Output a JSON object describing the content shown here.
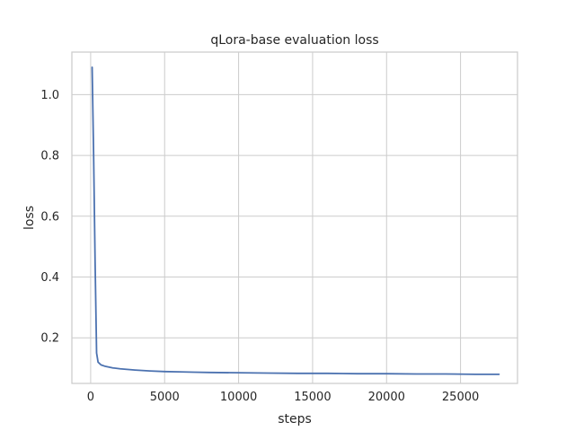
{
  "chart_data": {
    "type": "line",
    "title": "qLora-base evaluation loss",
    "xlabel": "steps",
    "ylabel": "loss",
    "xlim": [
      -1270,
      28850
    ],
    "ylim": [
      0.05,
      1.14
    ],
    "xticks": [
      0,
      5000,
      10000,
      15000,
      20000,
      25000
    ],
    "xtick_labels": [
      "0",
      "5000",
      "10000",
      "15000",
      "20000",
      "25000"
    ],
    "yticks": [
      0.2,
      0.4,
      0.6,
      0.8,
      1.0
    ],
    "ytick_labels": [
      "0.2",
      "0.4",
      "0.6",
      "0.8",
      "1.0"
    ],
    "grid": true,
    "legend": "none",
    "series": [
      {
        "color": "#4c72b0",
        "x": [
          100,
          200,
          300,
          400,
          500,
          700,
          1000,
          1500,
          2000,
          3000,
          4000,
          5000,
          6000,
          7000,
          8000,
          10000,
          12000,
          14000,
          16000,
          18000,
          20000,
          22000,
          24000,
          26000,
          27600
        ],
        "y": [
          1.09,
          0.8,
          0.45,
          0.15,
          0.12,
          0.111,
          0.106,
          0.101,
          0.098,
          0.094,
          0.091,
          0.089,
          0.088,
          0.087,
          0.086,
          0.085,
          0.084,
          0.083,
          0.083,
          0.082,
          0.082,
          0.081,
          0.081,
          0.08,
          0.08
        ]
      }
    ]
  }
}
